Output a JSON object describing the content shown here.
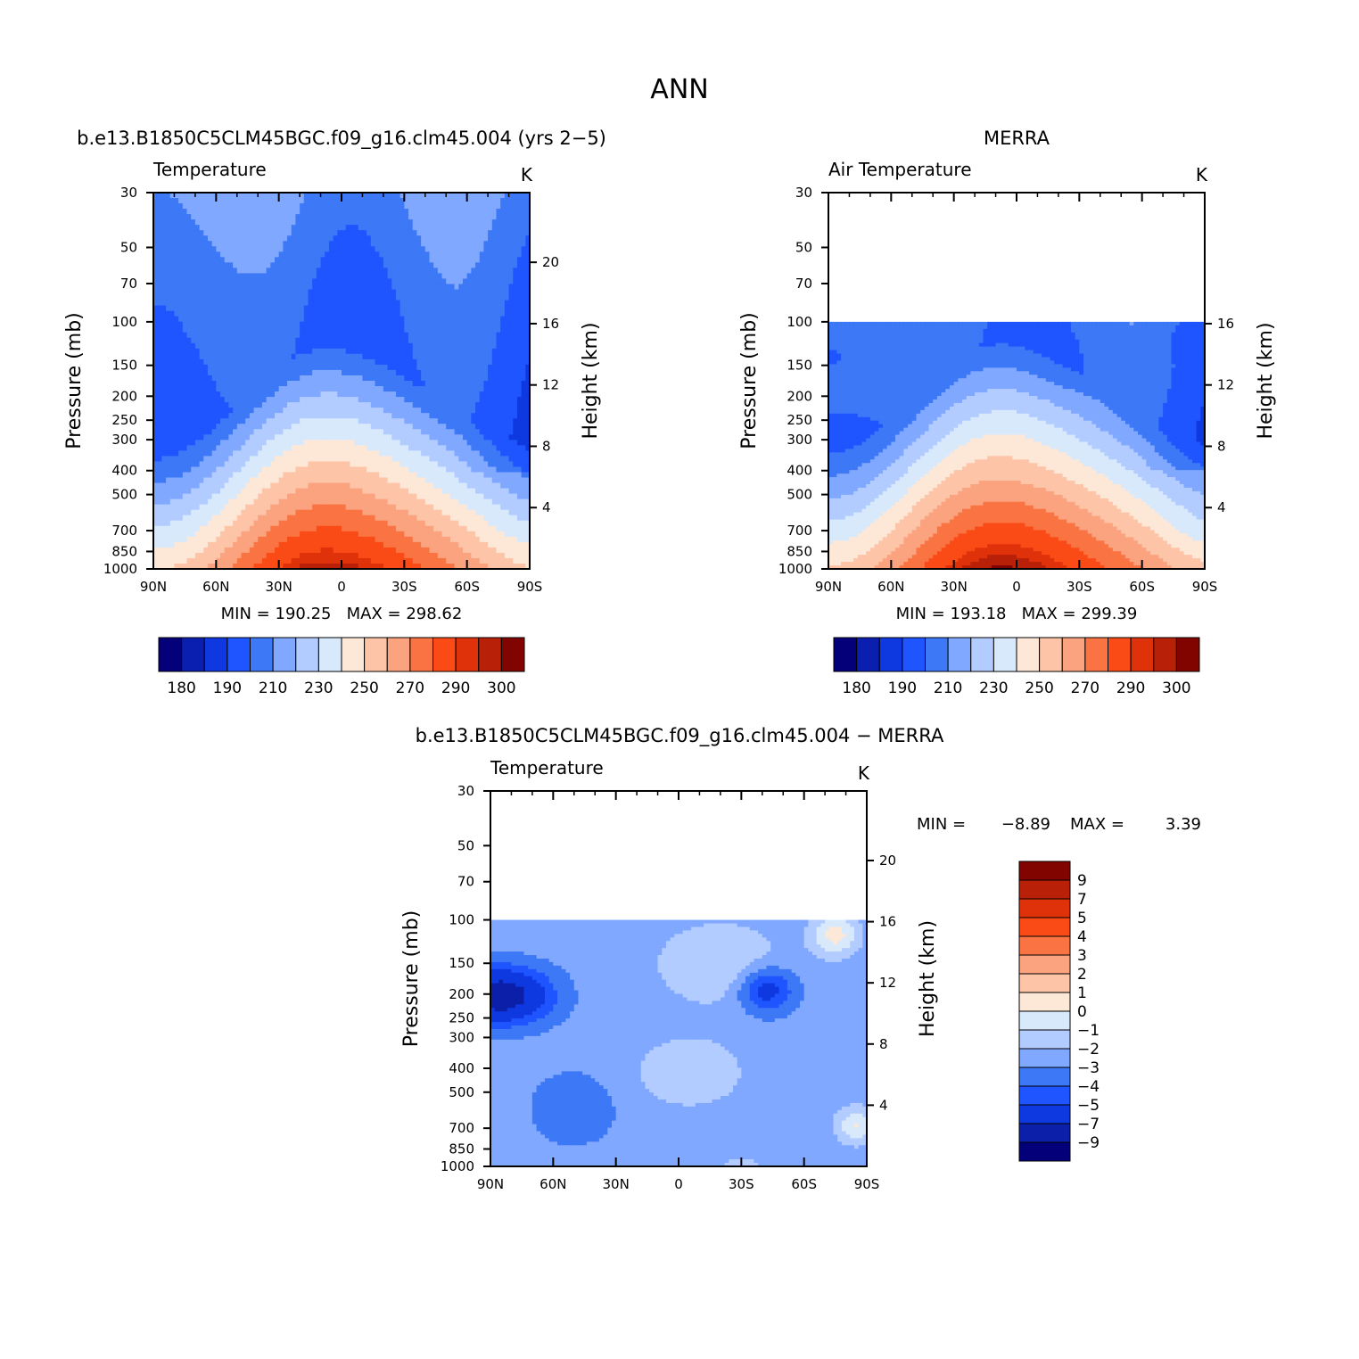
{
  "figure": {
    "title": "ANN"
  },
  "colors": {
    "abs_palette": [
      "#04007a",
      "#0a1fb0",
      "#0f39e0",
      "#1e55ff",
      "#3d78f6",
      "#80a8ff",
      "#b3ccff",
      "#d8e9fc",
      "#fde8d8",
      "#fdc4a8",
      "#fba27e",
      "#fa7443",
      "#fa4b17",
      "#e0320a",
      "#b82008",
      "#820400"
    ],
    "diff_palette": [
      "#04007a",
      "#0b1fa8",
      "#0f39e0",
      "#1e55ff",
      "#3d78f6",
      "#80a8ff",
      "#b3ccff",
      "#d8e9fc",
      "#fde8d8",
      "#fdc4a8",
      "#fba27e",
      "#fa7443",
      "#fa4b17",
      "#e0320a",
      "#b82008",
      "#820400"
    ],
    "no_data": "#ffffff",
    "axis": "#000000"
  },
  "panels": {
    "model": {
      "heading": "b.e13.B1850C5CLM45BGC.f09_g16.clm45.004 (yrs 2−5)",
      "variable": "Temperature",
      "units": "K",
      "stats": "MIN = 190.25   MAX = 298.62"
    },
    "obs": {
      "heading": "MERRA",
      "variable": "Air Temperature",
      "units": "K",
      "stats": "MIN = 193.18   MAX = 299.39"
    },
    "diff": {
      "heading": "b.e13.B1850C5CLM45BGC.f09_g16.clm45.004 − MERRA",
      "variable": "Temperature",
      "units": "K",
      "stats_min_label": "MIN =",
      "stats_min": "−8.89",
      "stats_max_label": "MAX =",
      "stats_max": "3.39"
    }
  },
  "chart_data": [
    {
      "type": "heatmap",
      "title": "b.e13.B1850C5CLM45BGC.f09_g16.clm45.004 (yrs 2−5)",
      "subtitle": "Temperature",
      "units": "K",
      "xlabel": "",
      "ylabel": "Pressure (mb)",
      "ylabel_right": "Height (km)",
      "x_ticks": [
        "90N",
        "60N",
        "30N",
        "0",
        "30S",
        "60S",
        "90S"
      ],
      "x_values": [
        90,
        60,
        30,
        0,
        -30,
        -60,
        -90
      ],
      "y_ticks": [
        30,
        50,
        70,
        100,
        150,
        200,
        250,
        300,
        400,
        500,
        700,
        850,
        1000
      ],
      "y_scale": "log",
      "y_range": [
        30,
        1000
      ],
      "right_ticks_km": [
        4,
        8,
        12,
        16,
        20
      ],
      "contour_levels": [
        180,
        185,
        190,
        200,
        210,
        220,
        230,
        240,
        250,
        260,
        270,
        280,
        290,
        295,
        300
      ],
      "min": 190.25,
      "max": 298.62,
      "colorbar_labels": [
        180,
        190,
        210,
        230,
        250,
        270,
        290,
        300
      ],
      "grid": false,
      "approx_field": {
        "surface_equator_K": 298,
        "surface_pole_K": 250,
        "tropopause_equator_min_K": 191,
        "stratosphere_K": 215
      }
    },
    {
      "type": "heatmap",
      "title": "MERRA",
      "subtitle": "Air Temperature",
      "units": "K",
      "xlabel": "",
      "ylabel": "Pressure (mb)",
      "ylabel_right": "Height (km)",
      "x_ticks": [
        "90N",
        "60N",
        "30N",
        "0",
        "30S",
        "60S",
        "90S"
      ],
      "x_values": [
        90,
        60,
        30,
        0,
        -30,
        -60,
        -90
      ],
      "y_ticks": [
        30,
        50,
        70,
        100,
        150,
        200,
        250,
        300,
        400,
        500,
        700,
        850,
        1000
      ],
      "y_scale": "log",
      "y_range": [
        30,
        1000
      ],
      "data_top_mb": 100,
      "right_ticks_km": [
        4,
        8,
        12,
        16
      ],
      "contour_levels": [
        180,
        185,
        190,
        200,
        210,
        220,
        230,
        240,
        250,
        260,
        270,
        280,
        290,
        295,
        300
      ],
      "min": 193.18,
      "max": 299.39,
      "colorbar_labels": [
        180,
        190,
        210,
        230,
        250,
        270,
        290,
        300
      ],
      "grid": false
    },
    {
      "type": "heatmap",
      "title": "b.e13.B1850C5CLM45BGC.f09_g16.clm45.004 − MERRA",
      "subtitle": "Temperature",
      "units": "K",
      "xlabel": "",
      "ylabel": "Pressure (mb)",
      "ylabel_right": "Height (km)",
      "x_ticks": [
        "90N",
        "60N",
        "30N",
        "0",
        "30S",
        "60S",
        "90S"
      ],
      "x_values": [
        90,
        60,
        30,
        0,
        -30,
        -60,
        -90
      ],
      "y_ticks": [
        30,
        50,
        70,
        100,
        150,
        200,
        250,
        300,
        400,
        500,
        700,
        850,
        1000
      ],
      "y_scale": "log",
      "y_range": [
        30,
        1000
      ],
      "data_top_mb": 100,
      "right_ticks_km": [
        4,
        8,
        12,
        16,
        20
      ],
      "contour_levels": [
        -9,
        -7,
        -5,
        -4,
        -3,
        -2,
        -1,
        0,
        1,
        2,
        3,
        4,
        5,
        7,
        9
      ],
      "min": -8.89,
      "max": 3.39,
      "colorbar_labels": [
        "9",
        "7",
        "5",
        "4",
        "3",
        "2",
        "1",
        "0",
        "−1",
        "−2",
        "−3",
        "−4",
        "−5",
        "−7",
        "−9"
      ],
      "grid": false
    }
  ]
}
